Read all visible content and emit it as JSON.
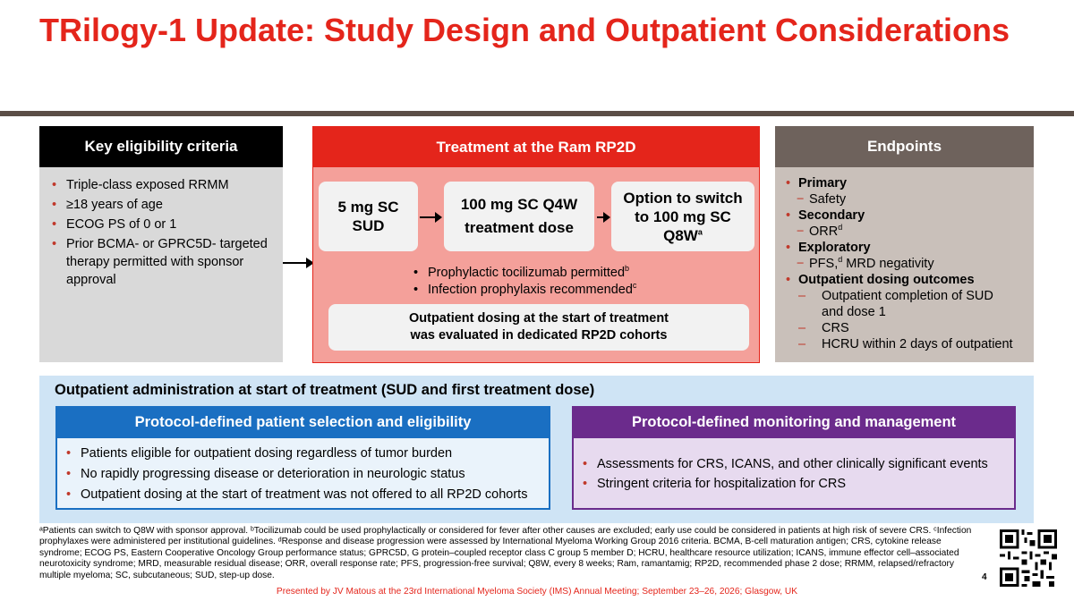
{
  "title": "TRilogy-1 Update: Study Design and Outpatient Considerations",
  "eligibility": {
    "heading": "Key eligibility criteria",
    "items": [
      "Triple-class exposed RRMM",
      "≥18 years of age",
      "ECOG PS of 0 or 1",
      "Prior BCMA- or GPRC5D- targeted therapy permitted with sponsor approval"
    ]
  },
  "treatment": {
    "heading": "Treatment at the Ram RP2D",
    "step1": "5 mg SC SUD",
    "step2_line1": "100 mg SC Q4W",
    "step2_line2": "treatment dose",
    "step3": "Option to switch to 100 mg SC Q8W",
    "step3_sup": "a",
    "note1": "Prophylactic tocilizumab permitted",
    "note1_sup": "b",
    "note2": "Infection prophylaxis recommended",
    "note2_sup": "c",
    "eval_line1": "Outpatient dosing at the start of treatment",
    "eval_line2": "was evaluated in dedicated RP2D cohorts"
  },
  "endpoints": {
    "heading": "Endpoints",
    "primary": "Primary",
    "primary_item": "Safety",
    "secondary": "Secondary",
    "secondary_item": "ORR",
    "secondary_sup": "d",
    "exploratory": "Exploratory",
    "exploratory_item_a": "PFS,",
    "exploratory_sup": "d",
    "exploratory_item_b": " MRD negativity",
    "outpatient": "Outpatient dosing outcomes",
    "outpatient_items": [
      "Outpatient completion of SUD",
      "and dose 1",
      "CRS",
      "HCRU within 2 days of outpatient"
    ]
  },
  "outpatient": {
    "heading": "Outpatient administration at start of treatment (SUD and first treatment dose)",
    "selection": {
      "heading": "Protocol-defined patient selection and eligibility",
      "items": [
        "Patients eligible for outpatient dosing regardless of tumor burden",
        "No rapidly progressing disease or deterioration in neurologic status",
        "Outpatient dosing at the start of treatment was not offered to all RP2D cohorts"
      ]
    },
    "monitoring": {
      "heading": "Protocol-defined monitoring and management",
      "items": [
        "Assessments for CRS, ICANS, and other clinically significant events",
        "Stringent criteria for hospitalization for CRS"
      ]
    }
  },
  "footnote": "ᵃPatients can switch to Q8W with sponsor approval. ᵇTocilizumab could be used prophylactically or considered for fever after other causes are excluded; early use could be considered in patients at high risk of severe CRS. ᶜInfection prophylaxes were administered per institutional guidelines. ᵈResponse and disease progression were assessed by International Myeloma Working Group 2016 criteria. BCMA, B-cell maturation antigen; CRS, cytokine release syndrome; ECOG PS, Eastern Cooperative Oncology Group performance status; GPRC5D, G protein–coupled receptor class C group 5 member D; HCRU, healthcare resource utilization; ICANS, immune effector cell–associated neurotoxicity syndrome; MRD, measurable residual disease; ORR, overall response rate; PFS, progression-free survival; Q8W, every 8 weeks; Ram, ramantamig; RP2D, recommended phase 2 dose; RRMM, relapsed/refractory multiple myeloma; SC, subcutaneous; SUD, step-up dose.",
  "presented_by": "Presented by JV Matous at the 23rd International Myeloma Society (IMS) Annual Meeting; September 23–26, 2026; Glasgow, UK",
  "page_number": "4",
  "colors": {
    "accent_red": "#e4251b",
    "endpoint_gray": "#6e625c",
    "selection_blue": "#1a6fc2",
    "monitoring_purple": "#6b2b8c"
  }
}
